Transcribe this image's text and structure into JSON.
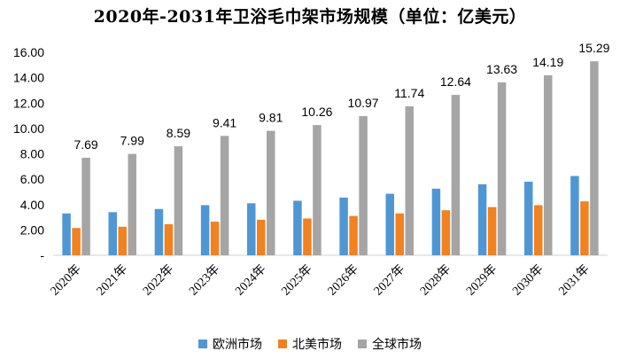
{
  "chart_data": {
    "type": "bar",
    "title": "2020年-2031年卫浴毛巾架市场规模（单位：亿美元）",
    "categories": [
      "2020年",
      "2021年",
      "2022年",
      "2023年",
      "2024年",
      "2025年",
      "2026年",
      "2027年",
      "2028年",
      "2029年",
      "2030年",
      "2031年"
    ],
    "series": [
      {
        "name": "欧洲市场",
        "color": "#4f97d4",
        "values": [
          3.3,
          3.4,
          3.65,
          3.95,
          4.1,
          4.3,
          4.55,
          4.85,
          5.25,
          5.6,
          5.8,
          6.25
        ]
      },
      {
        "name": "北美市场",
        "color": "#f2811f",
        "values": [
          2.15,
          2.25,
          2.45,
          2.65,
          2.8,
          2.9,
          3.1,
          3.3,
          3.55,
          3.8,
          3.95,
          4.25
        ]
      },
      {
        "name": "全球市场",
        "color": "#a5a5a5",
        "values": [
          7.69,
          7.99,
          8.59,
          9.41,
          9.81,
          10.26,
          10.97,
          11.74,
          12.64,
          13.63,
          14.19,
          15.29
        ]
      }
    ],
    "data_labels": [
      "7.69",
      "7.99",
      "8.59",
      "9.41",
      "9.81",
      "10.26",
      "10.97",
      "11.74",
      "12.64",
      "13.63",
      "14.19",
      "15.29"
    ],
    "y_ticks": [
      "-",
      "2.00",
      "4.00",
      "6.00",
      "8.00",
      "10.00",
      "12.00",
      "14.00",
      "16.00"
    ],
    "ylim": [
      0,
      16
    ],
    "xlabel": "",
    "ylabel": "",
    "legend_position": "bottom"
  }
}
